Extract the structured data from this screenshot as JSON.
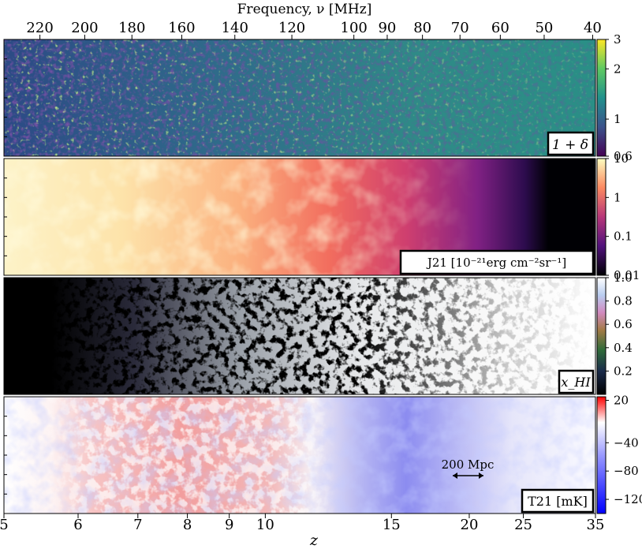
{
  "top_axis": {
    "label": "Frequency, ν [MHz]",
    "ticks": [
      "220",
      "200",
      "180",
      "160",
      "140",
      "120",
      "100",
      "90",
      "80",
      "70",
      "60",
      "50",
      "40"
    ]
  },
  "bottom_axis": {
    "label": "z",
    "ticks": [
      "5",
      "6",
      "7",
      "8",
      "9",
      "10",
      "15",
      "20",
      "25",
      "35"
    ]
  },
  "panels": [
    {
      "label": "1 + δ",
      "colorbar_ticks": [
        "3",
        "2",
        "1",
        "0.6"
      ]
    },
    {
      "label": "J21 [10⁻²¹erg cm⁻²sr⁻¹]",
      "colorbar_ticks": [
        "10",
        "1",
        "0.1",
        "0.01"
      ]
    },
    {
      "label": "x_HI",
      "colorbar_ticks": [
        "1.0",
        "0.8",
        "0.6",
        "0.4",
        "0.2"
      ]
    },
    {
      "label": "T21 [mK]",
      "colorbar_ticks": [
        "20",
        "−40",
        "−80",
        "−120"
      ],
      "scale_bar": "200 Mpc"
    }
  ],
  "chart_data": {
    "type": "heatmap",
    "title": "",
    "xlabel": "z",
    "xlabel_top": "Frequency, ν [MHz]",
    "x_ticks_z": [
      5,
      6,
      7,
      8,
      9,
      10,
      15,
      20,
      25,
      35
    ],
    "x_ticks_freq_MHz": [
      220,
      200,
      180,
      160,
      140,
      120,
      100,
      90,
      80,
      70,
      60,
      50,
      40
    ],
    "xlim_z": [
      5,
      35
    ],
    "panels": [
      {
        "quantity": "1 + δ",
        "colorbar_range": [
          0.6,
          3
        ],
        "colorbar_ticks": [
          3,
          2,
          1,
          0.6
        ],
        "colormap": "viridis"
      },
      {
        "quantity": "J21",
        "units": "10^-21 erg cm^-2 sr^-1",
        "colorbar_range": [
          0.01,
          10
        ],
        "colorbar_ticks": [
          10,
          1,
          0.1,
          0.01
        ],
        "colormap": "magma"
      },
      {
        "quantity": "x_HI",
        "colorbar_range": [
          0,
          1
        ],
        "colorbar_ticks": [
          1.0,
          0.8,
          0.6,
          0.4,
          0.2
        ],
        "colormap": "cubehelix"
      },
      {
        "quantity": "T21",
        "units": "mK",
        "colorbar_range": [
          -140,
          25
        ],
        "colorbar_ticks": [
          20,
          -40,
          -80,
          -120
        ],
        "colormap": "bwr"
      }
    ],
    "scale_bar": "200 Mpc",
    "grid": false
  }
}
